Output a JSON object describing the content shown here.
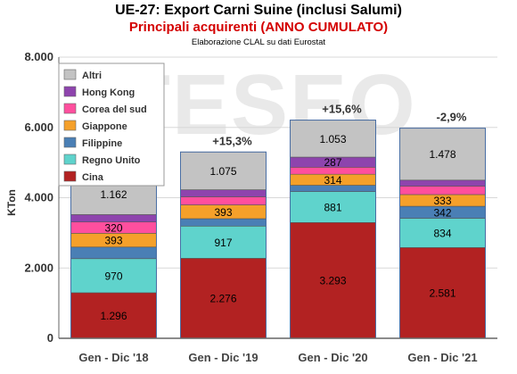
{
  "header": {
    "title": "UE-27: Export Carni Suine (inclusi Salumi)",
    "subtitle": "Principali acquirenti (ANNO CUMULATO)",
    "source": "Elaborazione CLAL su dati Eurostat",
    "watermark": "TESEO"
  },
  "chart_data": {
    "type": "bar",
    "stacked": true,
    "categories": [
      "Gen - Dic '18",
      "Gen - Dic '19",
      "Gen - Dic '20",
      "Gen - Dic '21"
    ],
    "ylabel": "KTon",
    "ylim": [
      0,
      8000
    ],
    "yticks": [
      0,
      2000,
      4000,
      6000,
      8000
    ],
    "ytick_labels": [
      "0",
      "2.000",
      "4.000",
      "6.000",
      "8.000"
    ],
    "grid": true,
    "legend_position": "top-left",
    "series": [
      {
        "name": "Cina",
        "color": "#b22222",
        "values": [
          1296,
          2276,
          3293,
          2581
        ],
        "labels": [
          "1.296",
          "2.276",
          "3.293",
          "2.581"
        ]
      },
      {
        "name": "Regno Unito",
        "color": "#5fd3cc",
        "values": [
          970,
          917,
          881,
          834
        ],
        "labels": [
          "970",
          "917",
          "881",
          "834"
        ]
      },
      {
        "name": "Filippine",
        "color": "#4a7fb5",
        "values": [
          330,
          210,
          180,
          342
        ],
        "labels": [
          "",
          "",
          "",
          "342"
        ]
      },
      {
        "name": "Giappone",
        "color": "#f5a02a",
        "values": [
          393,
          393,
          314,
          333
        ],
        "labels": [
          "393",
          "393",
          "314",
          "333"
        ]
      },
      {
        "name": "Corea del sud",
        "color": "#ff4f9e",
        "values": [
          320,
          230,
          200,
          240
        ],
        "labels": [
          "320",
          "",
          "",
          ""
        ]
      },
      {
        "name": "Hong Kong",
        "color": "#8e44ad",
        "values": [
          210,
          200,
          287,
          170
        ],
        "labels": [
          "",
          "",
          "287",
          ""
        ]
      },
      {
        "name": "Altri",
        "color": "#c3c3c3",
        "values": [
          1162,
          1075,
          1053,
          1478
        ],
        "labels": [
          "1.162",
          "1.075",
          "1.053",
          "1.478"
        ]
      }
    ],
    "annotations": [
      "",
      "+15,3%",
      "+15,6%",
      "-2,9%"
    ]
  }
}
